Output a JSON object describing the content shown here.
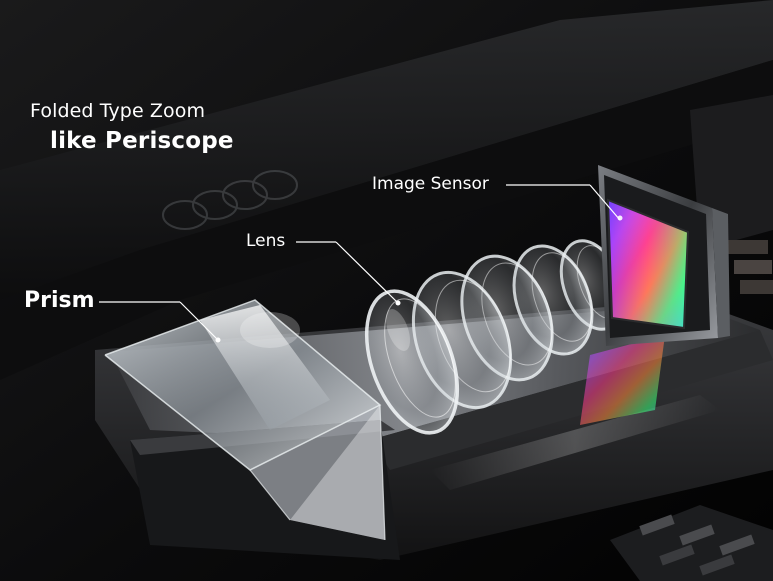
{
  "title": {
    "line1": "Folded Type Zoom",
    "line2": "like Periscope"
  },
  "labels": {
    "image_sensor": "Image Sensor",
    "lens": "Lens",
    "prism": "Prism"
  },
  "colors": {
    "background": "#050505",
    "text": "#ffffff",
    "glass": "#cfd6dc",
    "metal": "#8a8d92"
  }
}
